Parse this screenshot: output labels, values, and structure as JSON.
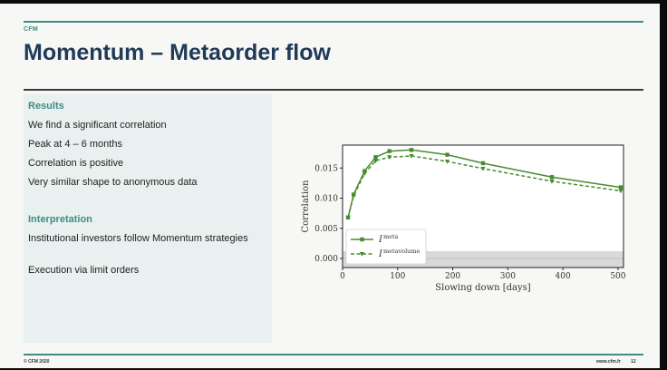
{
  "slide": {
    "brand": "CFM",
    "title": "Momentum – Metaorder flow",
    "footer_left": "© CFM 2020",
    "footer_url": "www.cfm.fr",
    "page_number": "12"
  },
  "results": {
    "heading": "Results",
    "items": [
      "We find a significant correlation",
      "Peak at 4 – 6 months",
      "Correlation is positive",
      "Very similar shape to anonymous data"
    ]
  },
  "interpretation": {
    "heading": "Interpretation",
    "items": [
      "Institutional investors follow Momentum strategies",
      "Execution via limit orders"
    ]
  },
  "chart_data": {
    "type": "line",
    "xlabel": "Slowing down [days]",
    "ylabel": "Correlation",
    "xlim": [
      0,
      510
    ],
    "ylim": [
      -0.0015,
      0.0188
    ],
    "xticks": [
      0,
      100,
      200,
      300,
      400,
      500
    ],
    "yticks": [
      0.0,
      0.005,
      0.01,
      0.015
    ],
    "ytick_labels": [
      "0.000",
      "0.005",
      "0.010",
      "0.015"
    ],
    "grid": false,
    "legend_location": "lower-left",
    "band": {
      "y": [
        -0.0015,
        0.0012
      ],
      "color": "#d9d9d9"
    },
    "series": [
      {
        "name": "meta",
        "style": "solid",
        "color": "#4a8b30",
        "marker": "square",
        "x": [
          10,
          20,
          40,
          60,
          85,
          125,
          190,
          255,
          380,
          505
        ],
        "y": [
          0.0068,
          0.0106,
          0.0145,
          0.0168,
          0.0178,
          0.018,
          0.0172,
          0.0158,
          0.0135,
          0.0118
        ]
      },
      {
        "name": "metavolume",
        "style": "dashed",
        "color": "#4a8b30",
        "marker": "triangle",
        "x": [
          10,
          20,
          40,
          60,
          85,
          125,
          190,
          255,
          380,
          505
        ],
        "y": [
          0.0068,
          0.0104,
          0.0141,
          0.0162,
          0.0168,
          0.017,
          0.0161,
          0.0149,
          0.0128,
          0.0112
        ]
      }
    ]
  }
}
